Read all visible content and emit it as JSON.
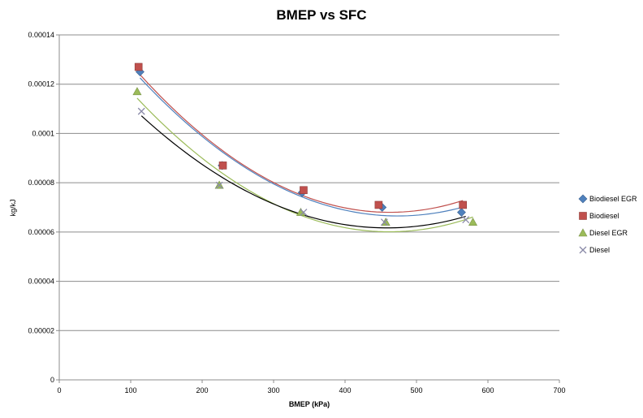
{
  "chart_data": {
    "type": "scatter",
    "title": "BMEP vs SFC",
    "xlabel": "BMEP (kPa)",
    "ylabel": "kg/kJ",
    "xlim": [
      0,
      700
    ],
    "ylim": [
      0,
      0.00014
    ],
    "x_ticks": [
      "0",
      "100",
      "200",
      "300",
      "400",
      "500",
      "600",
      "700"
    ],
    "y_ticks": [
      "0",
      "0.00002",
      "0.00004",
      "0.00006",
      "0.00008",
      "0.0001",
      "0.00012",
      "0.00014"
    ],
    "grid": "horizontal",
    "legend_position": "right",
    "series": [
      {
        "name": "Biodiesel EGR",
        "marker": "diamond",
        "color": "#4f81bd",
        "trend_color": "#4f81bd",
        "points": [
          [
            113,
            0.000125
          ],
          [
            228,
            8.7e-05
          ],
          [
            340,
            7.6e-05
          ],
          [
            452,
            7e-05
          ],
          [
            563,
            6.8e-05
          ]
        ]
      },
      {
        "name": "Biodiesel",
        "marker": "square",
        "color": "#c0504d",
        "trend_color": "#c0504d",
        "points": [
          [
            111,
            0.000127
          ],
          [
            229,
            8.7e-05
          ],
          [
            342,
            7.7e-05
          ],
          [
            447,
            7.1e-05
          ],
          [
            565,
            7.1e-05
          ]
        ]
      },
      {
        "name": "Diesel EGR",
        "marker": "triangle",
        "color": "#9bbb59",
        "trend_color": "#9bbb59",
        "points": [
          [
            109,
            0.000117
          ],
          [
            224,
            7.9e-05
          ],
          [
            338,
            6.8e-05
          ],
          [
            457,
            6.4e-05
          ],
          [
            579,
            6.4e-05
          ]
        ]
      },
      {
        "name": "Diesel",
        "marker": "x",
        "color": "#8a8aa8",
        "trend_color": "#000000",
        "points": [
          [
            115,
            0.000109
          ],
          [
            224,
            7.9e-05
          ],
          [
            342,
            6.8e-05
          ],
          [
            455,
            6.4e-05
          ],
          [
            569,
            6.5e-05
          ]
        ]
      }
    ]
  }
}
